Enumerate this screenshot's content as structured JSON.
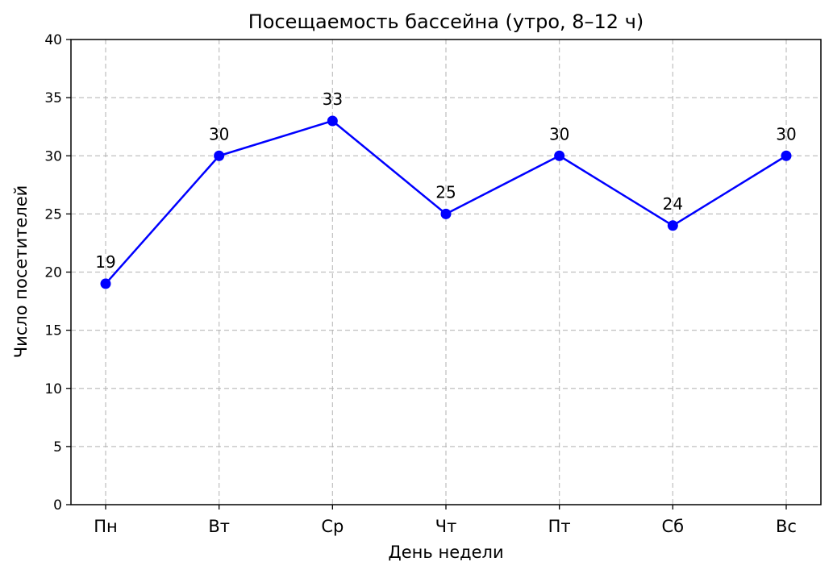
{
  "chart_data": {
    "type": "line",
    "title": "Посещаемость бассейна (утро, 8–12 ч)",
    "xlabel": "День недели",
    "ylabel": "Число посетителей",
    "categories": [
      "Пн",
      "Вт",
      "Ср",
      "Чт",
      "Пт",
      "Сб",
      "Вс"
    ],
    "series": [
      {
        "values": [
          19,
          30,
          33,
          25,
          30,
          24,
          30
        ],
        "color": "#0000ff",
        "marker": "circle"
      }
    ],
    "data_labels": [
      "19",
      "30",
      "33",
      "25",
      "30",
      "24",
      "30"
    ],
    "ylim": [
      0,
      40
    ],
    "yticks": [
      0,
      5,
      10,
      15,
      20,
      25,
      30,
      35,
      40
    ],
    "ytick_labels": [
      "0",
      "5",
      "10",
      "15",
      "20",
      "25",
      "30",
      "35",
      "40"
    ],
    "grid": true,
    "grid_style": "dashed"
  }
}
